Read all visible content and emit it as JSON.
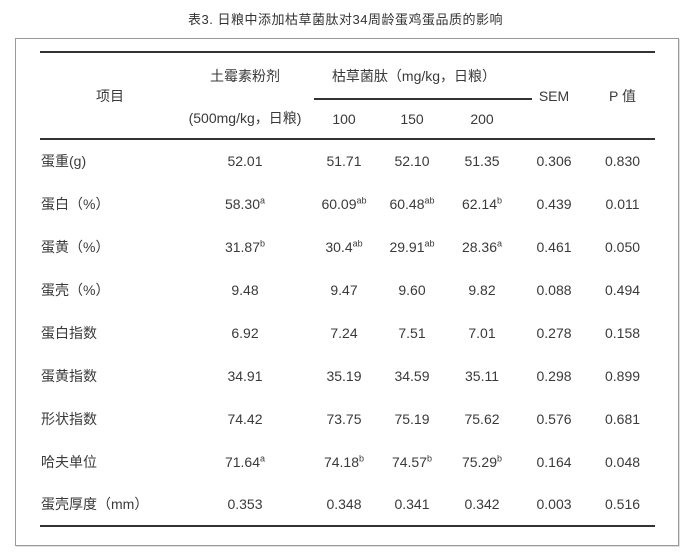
{
  "title": "表3. 日粮中添加枯草菌肽对34周龄蛋鸡蛋品质的影响",
  "colors": {
    "text": "#3a3a3a",
    "rule": "#333333",
    "box_border": "#999999",
    "background": "#ffffff"
  },
  "table": {
    "header": {
      "item": "项目",
      "control_line1": "土霉素粉剂",
      "control_line2": "(500mg/kg，日粮)",
      "treatment_group": "枯草菌肽（mg/kg，日粮）",
      "doses": [
        "100",
        "150",
        "200"
      ],
      "sem": "SEM",
      "p": "P 值"
    },
    "rows": [
      {
        "label": "蛋重(g)",
        "values": [
          "52.01",
          "51.71",
          "52.10",
          "51.35",
          "0.306",
          "0.830"
        ]
      },
      {
        "label": "蛋白（%）",
        "values": [
          "58.30^a",
          "60.09^ab",
          "60.48^ab",
          "62.14^b",
          "0.439",
          "0.011"
        ]
      },
      {
        "label": "蛋黄（%）",
        "values": [
          "31.87^b",
          "30.4^ab",
          "29.91^ab",
          "28.36^a",
          "0.461",
          "0.050"
        ]
      },
      {
        "label": "蛋壳（%）",
        "values": [
          "9.48",
          "9.47",
          "9.60",
          "9.82",
          "0.088",
          "0.494"
        ]
      },
      {
        "label": "蛋白指数",
        "values": [
          "6.92",
          "7.24",
          "7.51",
          "7.01",
          "0.278",
          "0.158"
        ]
      },
      {
        "label": "蛋黄指数",
        "values": [
          "34.91",
          "35.19",
          "34.59",
          "35.11",
          "0.298",
          "0.899"
        ]
      },
      {
        "label": "形状指数",
        "values": [
          "74.42",
          "73.75",
          "75.19",
          "75.62",
          "0.576",
          "0.681"
        ]
      },
      {
        "label": "哈夫单位",
        "values": [
          "71.64^a",
          "74.18^b",
          "74.57^b",
          "75.29^b",
          "0.164",
          "0.048"
        ]
      },
      {
        "label": "蛋壳厚度（mm）",
        "values": [
          "0.353",
          "0.348",
          "0.341",
          "0.342",
          "0.003",
          "0.516"
        ]
      }
    ]
  }
}
